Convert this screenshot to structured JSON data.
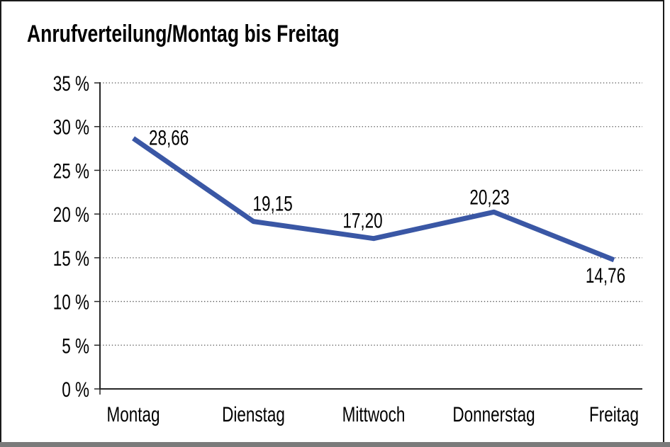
{
  "title": "Anrufverteilung/Montag bis Freitag",
  "frame": {
    "border_color": "#1a1a1a",
    "shadow_color": "#7a7a7a",
    "background": "#ffffff"
  },
  "chart_data": {
    "type": "line",
    "title": "Anrufverteilung/Montag bis Freitag",
    "categories": [
      "Montag",
      "Dienstag",
      "Mittwoch",
      "Donnerstag",
      "Freitag"
    ],
    "values": [
      28.66,
      19.15,
      17.2,
      20.23,
      14.76
    ],
    "value_labels": [
      "28,66",
      "19,15",
      "17,20",
      "20,23",
      "14,76"
    ],
    "y_tick_labels": [
      "0 %",
      "5 %",
      "10 %",
      "15 %",
      "20 %",
      "25 %",
      "30 %",
      "35 %"
    ],
    "ylim": [
      0,
      35
    ],
    "y_tick_step": 5,
    "xlabel": "",
    "ylabel": "",
    "grid": "horizontal-dotted",
    "legend": "none",
    "line_color": "#3A57A5",
    "axis_color": "#262626",
    "gridline_color": "#5a5a5a"
  }
}
